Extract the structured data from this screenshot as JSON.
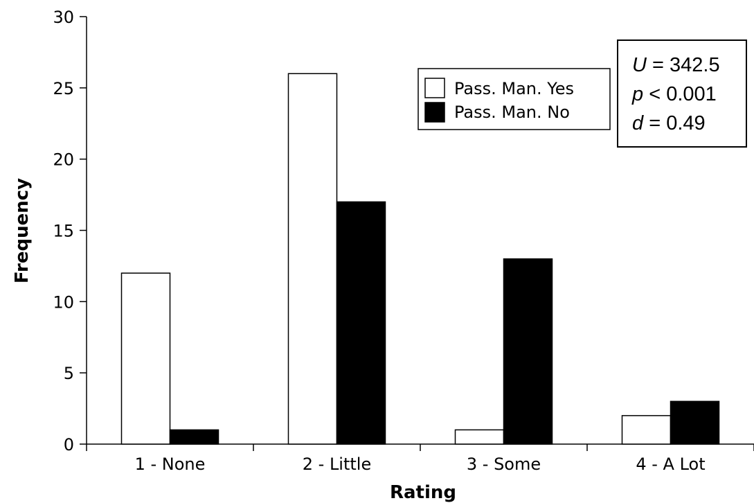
{
  "chart_data": {
    "type": "bar",
    "categories": [
      "1 - None",
      "2 - Little",
      "3 - Some",
      "4 - A Lot"
    ],
    "series": [
      {
        "name": "Pass. Man. Yes",
        "values": [
          12,
          26,
          1,
          2
        ],
        "color": "#ffffff",
        "edge": "#000000"
      },
      {
        "name": "Pass. Man. No",
        "values": [
          1,
          17,
          13,
          3
        ],
        "color": "#000000",
        "edge": "#000000"
      }
    ],
    "title": "",
    "xlabel": "Rating",
    "ylabel": "Frequency",
    "ylim": [
      0,
      30
    ],
    "yticks": [
      0,
      5,
      10,
      15,
      20,
      25,
      30
    ],
    "grid": false,
    "legend_position": "top-center-right",
    "annotation": {
      "lines": [
        {
          "var": "U",
          "rest": " = 342.5"
        },
        {
          "var": "p",
          "rest": " < 0.001"
        },
        {
          "var": "d",
          "rest": " = 0.49"
        }
      ]
    }
  }
}
